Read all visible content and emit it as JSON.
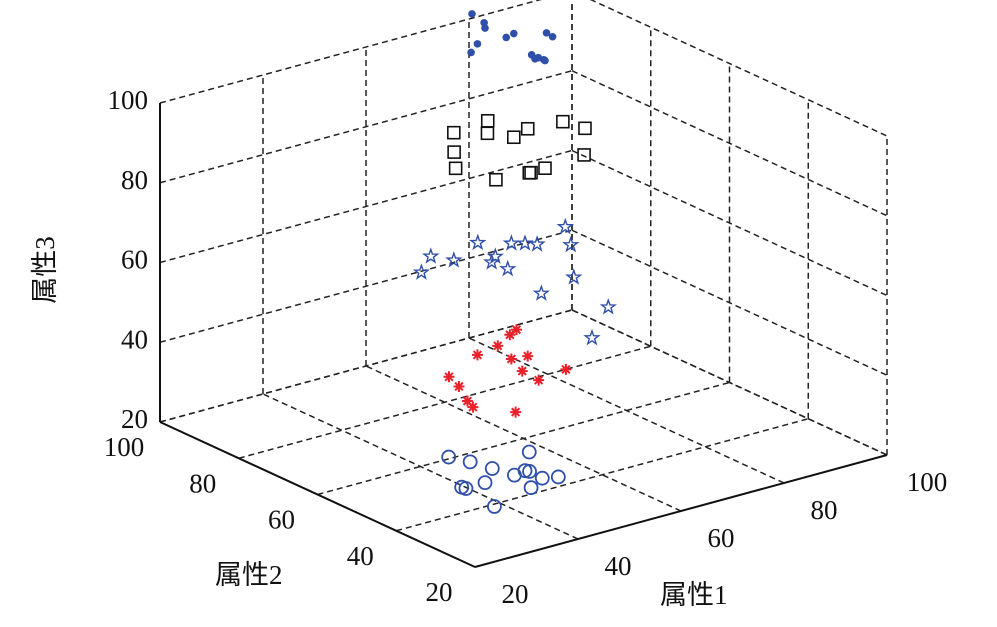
{
  "chart_data": {
    "type": "scatter3d",
    "xlabel": "属性1",
    "ylabel": "属性2",
    "zlabel": "属性3",
    "xlim": [
      20,
      100
    ],
    "ylim": [
      20,
      100
    ],
    "zlim": [
      20,
      100
    ],
    "xticks": [
      20,
      40,
      60,
      80,
      100
    ],
    "yticks": [
      20,
      40,
      60,
      80,
      100
    ],
    "zticks": [
      20,
      40,
      60,
      80,
      100
    ],
    "grid": true,
    "series": [
      {
        "marker": "circle",
        "color": "#2f4fa8",
        "x": [
          45,
          52,
          48,
          55,
          50,
          42,
          58,
          47,
          53,
          49,
          44,
          56,
          51,
          46
        ],
        "y": [
          55,
          48,
          60,
          52,
          45,
          50,
          57,
          62,
          42,
          53,
          47,
          50,
          58,
          44
        ],
        "z": [
          15,
          20,
          12,
          22,
          18,
          25,
          14,
          19,
          21,
          10,
          24,
          16,
          13,
          23
        ]
      },
      {
        "marker": "asterisk",
        "color": "#e8212a",
        "x": [
          44,
          50,
          47,
          55,
          52,
          41,
          57,
          49,
          46,
          53,
          48,
          43,
          56,
          51
        ],
        "y": [
          58,
          50,
          45,
          60,
          53,
          48,
          55,
          62,
          42,
          47,
          56,
          52,
          44,
          50
        ],
        "z": [
          42,
          48,
          38,
          45,
          52,
          40,
          44,
          36,
          50,
          43,
          47,
          39,
          46,
          55
        ]
      },
      {
        "marker": "pentagram",
        "color": "#2f4fa8",
        "x": [
          42,
          50,
          55,
          48,
          60,
          45,
          52,
          58,
          47,
          53,
          62,
          44,
          56,
          50,
          65,
          58
        ],
        "y": [
          60,
          55,
          50,
          62,
          48,
          52,
          45,
          57,
          47,
          58,
          52,
          65,
          42,
          50,
          45,
          40
        ],
        "z": [
          72,
          70,
          75,
          68,
          74,
          78,
          66,
          71,
          73,
          69,
          76,
          65,
          70,
          77,
          58,
          55
        ]
      },
      {
        "marker": "square",
        "color": "#111111",
        "x": [
          45,
          52,
          55,
          48,
          60,
          50,
          57,
          43,
          53,
          62,
          47,
          58,
          50,
          55
        ],
        "y": [
          58,
          52,
          48,
          62,
          50,
          45,
          55,
          55,
          60,
          47,
          50,
          42,
          56,
          52
        ],
        "z": [
          98,
          102,
          95,
          100,
          104,
          97,
          101,
          96,
          99,
          103,
          94,
          100,
          105,
          92
        ]
      },
      {
        "marker": "dot",
        "color": "#2f4fa8",
        "x": [
          48,
          52,
          55,
          50,
          58,
          46,
          53,
          57,
          51,
          49,
          54,
          47,
          56,
          50
        ],
        "y": [
          56,
          52,
          48,
          60,
          50,
          55,
          45,
          54,
          58,
          50,
          47,
          53,
          51,
          44
        ],
        "z": [
          125,
          128,
          122,
          130,
          126,
          124,
          131,
          120,
          127,
          129,
          123,
          132,
          121,
          126
        ]
      }
    ]
  }
}
